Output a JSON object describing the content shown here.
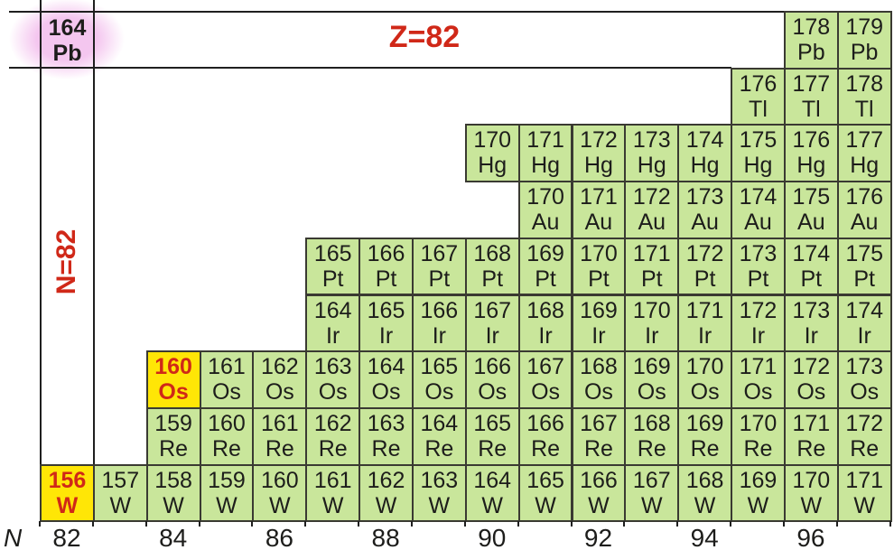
{
  "figure": {
    "z_band_label": "Z=82",
    "n_line_label": "N=82",
    "highlight": {
      "mass": "164",
      "symbol": "Pb"
    },
    "axis": {
      "name": "N",
      "tick_labels": [
        "82",
        "84",
        "86",
        "88",
        "90",
        "92",
        "94",
        "96"
      ]
    },
    "colors": {
      "cell_green": "#c9e69b",
      "cell_yellow": "#ffe606",
      "accent_red": "#d02818",
      "cell_text": "#1d1d1b",
      "cell_border": "#3a3a32",
      "line_black": "#1f1f1f",
      "highlight_pink": "#f4c6ef"
    },
    "rows": [
      {
        "symbol": "Pb",
        "n_first": 96,
        "masses": [
          "178",
          "179"
        ]
      },
      {
        "symbol": "Tl",
        "n_first": 95,
        "masses": [
          "176",
          "177",
          "178"
        ]
      },
      {
        "symbol": "Hg",
        "n_first": 90,
        "masses": [
          "170",
          "171",
          "172",
          "173",
          "174",
          "175",
          "176",
          "177"
        ]
      },
      {
        "symbol": "Au",
        "n_first": 91,
        "masses": [
          "170",
          "171",
          "172",
          "173",
          "174",
          "175",
          "176"
        ]
      },
      {
        "symbol": "Pt",
        "n_first": 87,
        "masses": [
          "165",
          "166",
          "167",
          "168",
          "169",
          "170",
          "171",
          "172",
          "173",
          "174",
          "175"
        ]
      },
      {
        "symbol": "Ir",
        "n_first": 87,
        "masses": [
          "164",
          "165",
          "166",
          "167",
          "168",
          "169",
          "170",
          "171",
          "172",
          "173",
          "174"
        ]
      },
      {
        "symbol": "Os",
        "n_first": 84,
        "masses": [
          "160",
          "161",
          "162",
          "163",
          "164",
          "165",
          "166",
          "167",
          "168",
          "169",
          "170",
          "171",
          "172",
          "173"
        ],
        "highlighted": [
          "160"
        ]
      },
      {
        "symbol": "Re",
        "n_first": 84,
        "masses": [
          "159",
          "160",
          "161",
          "162",
          "163",
          "164",
          "165",
          "166",
          "167",
          "168",
          "169",
          "170",
          "171",
          "172"
        ]
      },
      {
        "symbol": "W",
        "n_first": 82,
        "masses": [
          "156",
          "157",
          "158",
          "159",
          "160",
          "161",
          "162",
          "163",
          "164",
          "165",
          "166",
          "167",
          "168",
          "169",
          "170",
          "171"
        ],
        "highlighted": [
          "156"
        ]
      }
    ]
  }
}
